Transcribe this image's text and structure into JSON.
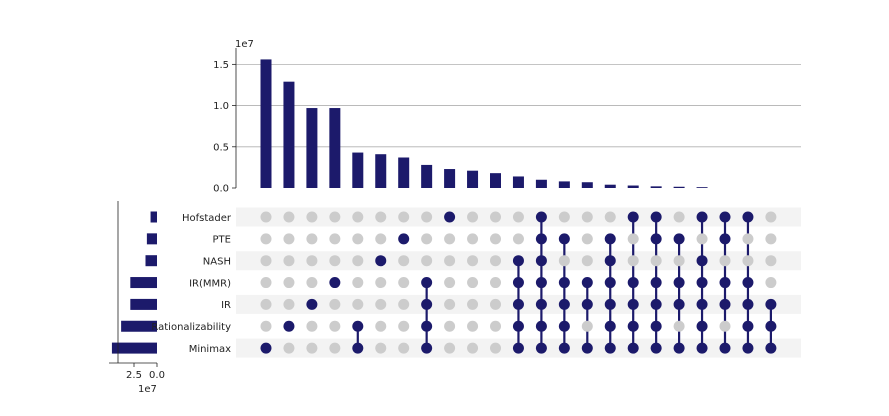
{
  "chart_data": {
    "type": "upset",
    "colors": {
      "bar": "#1c1a6b",
      "dot_on": "#1c1a6b",
      "dot_off": "#cccccc",
      "grid": "#b0b0b0",
      "stripe": "#f3f3f3"
    },
    "intersections": {
      "scale_label": "1e7",
      "y_ticks": [
        "0.0",
        "0.5",
        "1.0",
        "1.5"
      ],
      "y_tick_values": [
        0,
        0.5,
        1.0,
        1.5
      ],
      "ylim": [
        0,
        1.65
      ],
      "values": [
        1.56,
        1.29,
        0.97,
        0.97,
        0.43,
        0.41,
        0.37,
        0.28,
        0.23,
        0.21,
        0.18,
        0.14,
        0.1,
        0.08,
        0.07,
        0.04,
        0.03,
        0.02,
        0.015,
        0.01,
        0,
        0,
        0
      ]
    },
    "sets": {
      "names": [
        "Hofstader",
        "PTE",
        "NASH",
        "IR(MMR)",
        "IR",
        "Rationalizability",
        "Minimax"
      ],
      "sizes": [
        0.7,
        1.1,
        1.25,
        2.9,
        2.9,
        3.9,
        4.9
      ],
      "x_ticks": [
        "2.5",
        "0.0"
      ],
      "x_tick_values": [
        2.5,
        0
      ],
      "scale_label": "1e7",
      "xlim": [
        5.0,
        0
      ]
    },
    "membership": [
      [
        6
      ],
      [
        5
      ],
      [
        4
      ],
      [
        3
      ],
      [
        5,
        6
      ],
      [
        2
      ],
      [
        1
      ],
      [
        3,
        4,
        5,
        6
      ],
      [
        0
      ],
      [],
      [],
      [
        2,
        3,
        4,
        5,
        6
      ],
      [
        0,
        1,
        2,
        3,
        4,
        5,
        6
      ],
      [
        1,
        3,
        4,
        5,
        6
      ],
      [
        3,
        4,
        6
      ],
      [
        1,
        2,
        3,
        4,
        5,
        6
      ],
      [
        0,
        3,
        4,
        5,
        6
      ],
      [
        0,
        1,
        3,
        4,
        5,
        6
      ],
      [
        1,
        3,
        4,
        6
      ],
      [
        0,
        2,
        3,
        4,
        5,
        6
      ],
      [
        0,
        1,
        3,
        4,
        6
      ],
      [
        0,
        3,
        4,
        5,
        6
      ],
      [
        4,
        5,
        6
      ]
    ]
  }
}
